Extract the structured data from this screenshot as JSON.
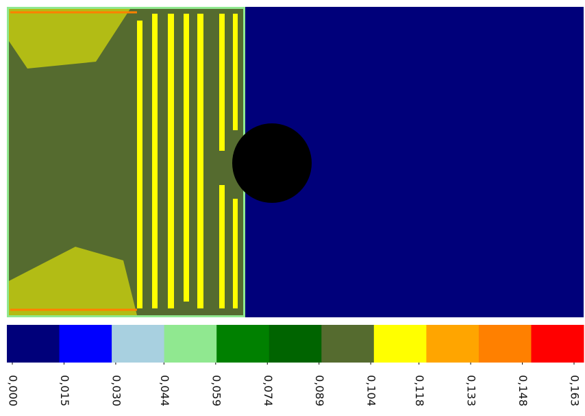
{
  "chart_data": {
    "type": "colorbar",
    "colors": [
      "#00007a",
      "#0000ff",
      "#a8d0e0",
      "#90e890",
      "#008000",
      "#006400",
      "#556b2f",
      "#ffff00",
      "#ffa500",
      "#ff8000",
      "#ff0000"
    ],
    "xlim": [
      0,
      0.163
    ],
    "xticks": [
      {
        "value": 0.0,
        "label": "0,000"
      },
      {
        "value": 0.015,
        "label": "0,015"
      },
      {
        "value": 0.03,
        "label": "0,030"
      },
      {
        "value": 0.044,
        "label": "0,044"
      },
      {
        "value": 0.059,
        "label": "0,059"
      },
      {
        "value": 0.074,
        "label": "0,074"
      },
      {
        "value": 0.089,
        "label": "0,089"
      },
      {
        "value": 0.104,
        "label": "0,104"
      },
      {
        "value": 0.118,
        "label": "0,118"
      },
      {
        "value": 0.133,
        "label": "0,133"
      },
      {
        "value": 0.148,
        "label": "0,148"
      },
      {
        "value": 0.163,
        "label": "0,163"
      }
    ]
  }
}
